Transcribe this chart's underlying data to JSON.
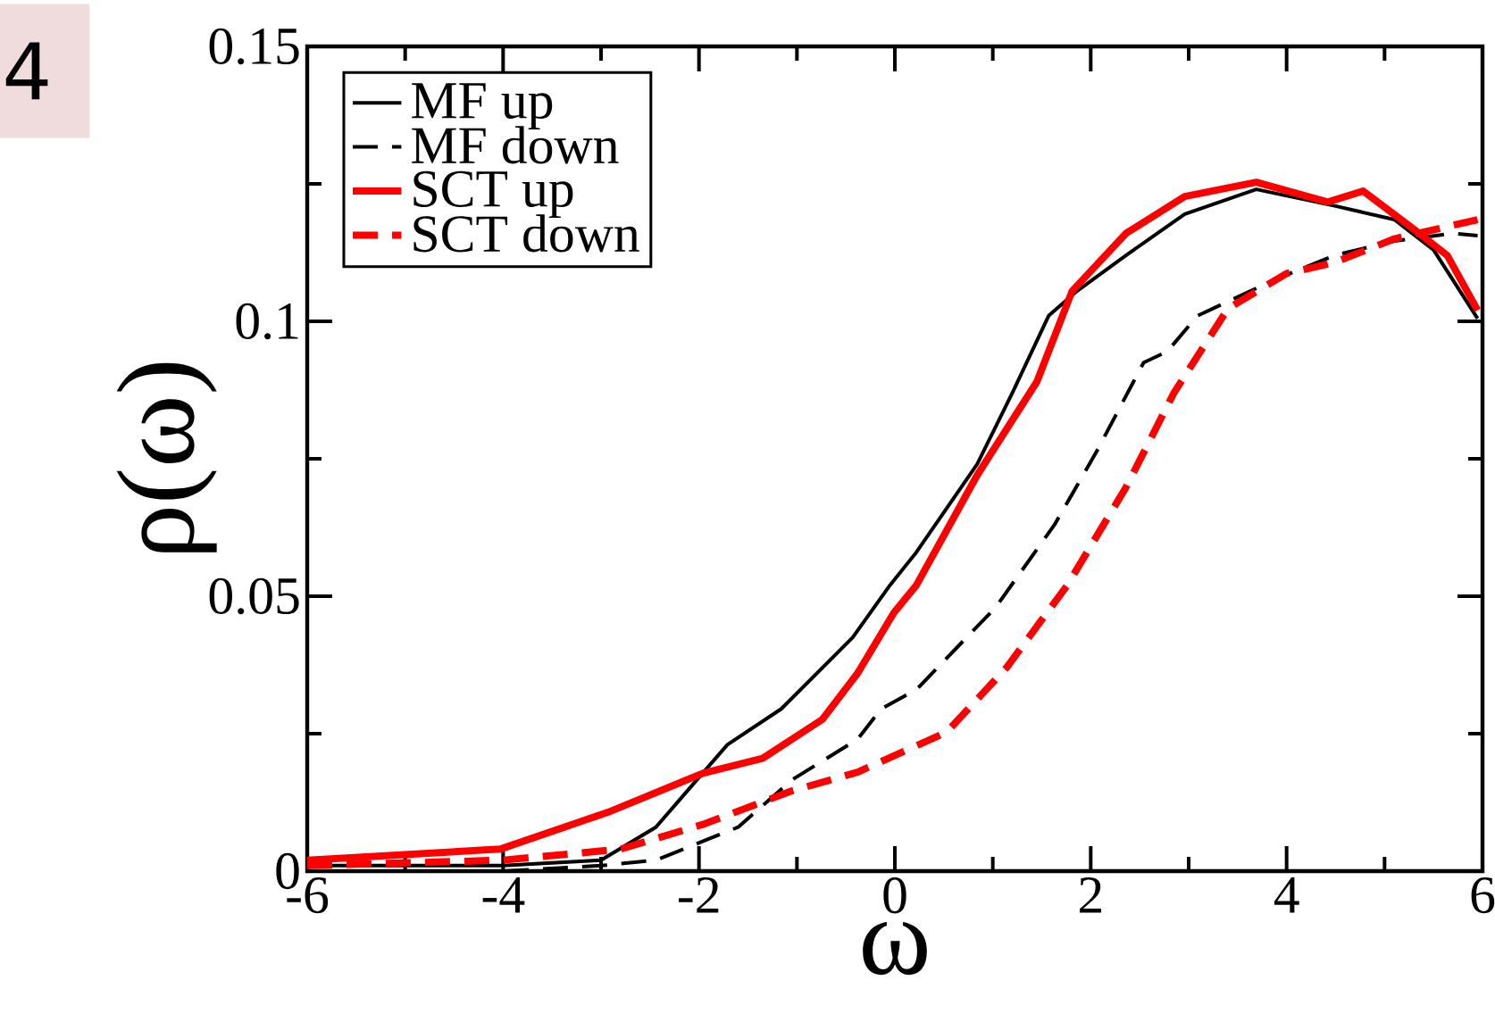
{
  "chart_data": {
    "type": "line",
    "xlabel": "ω",
    "ylabel": "ρ(ω)",
    "xlim": [
      -6,
      6
    ],
    "xticks": [
      -6,
      -4,
      -2,
      0,
      2,
      4,
      6
    ],
    "ylim": [
      0,
      0.15
    ],
    "yticks": [
      0,
      0.05,
      0.1,
      0.15
    ],
    "legend": "top left",
    "grid": false,
    "marker": "none",
    "annotations": [
      "4"
    ],
    "series": [
      {
        "name": "MF up",
        "color": "#000000",
        "line_style": "solid",
        "x": [
          -6,
          -4,
          -3,
          -2.44,
          -1.71,
          -1.16,
          -0.43,
          -0.05,
          0.22,
          0.84,
          1.2,
          1.57,
          1.86,
          2.36,
          2.96,
          3.69,
          4.49,
          5.1,
          5.5,
          5.95
        ],
        "values": [
          0.001,
          0.001,
          0.002,
          0.008,
          0.023,
          0.0295,
          0.0425,
          0.052,
          0.058,
          0.074,
          0.087,
          0.101,
          0.1055,
          0.112,
          0.1195,
          0.124,
          0.121,
          0.1185,
          0.113,
          0.1005
        ]
      },
      {
        "name": "MF down",
        "color": "#000000",
        "line_style": "dashed",
        "x": [
          -6,
          -4,
          -3,
          -2.44,
          -1.6,
          -1.05,
          -0.38,
          -0.14,
          0.22,
          1.03,
          1.63,
          2.05,
          2.54,
          2.78,
          3.09,
          3.87,
          4.49,
          5.1,
          5.7,
          5.95
        ],
        "values": [
          0.0,
          0.0,
          0.001,
          0.002,
          0.008,
          0.0166,
          0.024,
          0.0295,
          0.033,
          0.048,
          0.063,
          0.076,
          0.0925,
          0.0945,
          0.101,
          0.1075,
          0.112,
          0.1146,
          0.116,
          0.1156
        ]
      },
      {
        "name": "SCT up",
        "color": "#ff0000",
        "line_style": "solid",
        "x": [
          -6,
          -4.03,
          -2.93,
          -1.96,
          -1.35,
          -0.74,
          -0.38,
          -0.01,
          0.22,
          0.84,
          1.45,
          1.81,
          2.36,
          2.96,
          3.69,
          4.42,
          4.78,
          5.28,
          5.64,
          5.95
        ],
        "values": [
          0.002,
          0.004,
          0.0107,
          0.0178,
          0.0205,
          0.0276,
          0.036,
          0.047,
          0.052,
          0.072,
          0.089,
          0.1055,
          0.116,
          0.1227,
          0.1253,
          0.1217,
          0.1237,
          0.117,
          0.112,
          0.102
        ]
      },
      {
        "name": "SCT down",
        "color": "#ff0000",
        "line_style": "dashed",
        "x": [
          -6,
          -4,
          -2.8,
          -1.96,
          -1.05,
          -0.38,
          0.53,
          1.14,
          1.76,
          2.36,
          2.85,
          3.4,
          4.0,
          4.49,
          5.1,
          5.95
        ],
        "values": [
          0.001,
          0.002,
          0.004,
          0.0085,
          0.0146,
          0.018,
          0.0253,
          0.037,
          0.052,
          0.0698,
          0.087,
          0.1023,
          0.1087,
          0.1107,
          0.115,
          0.1185
        ]
      }
    ]
  }
}
